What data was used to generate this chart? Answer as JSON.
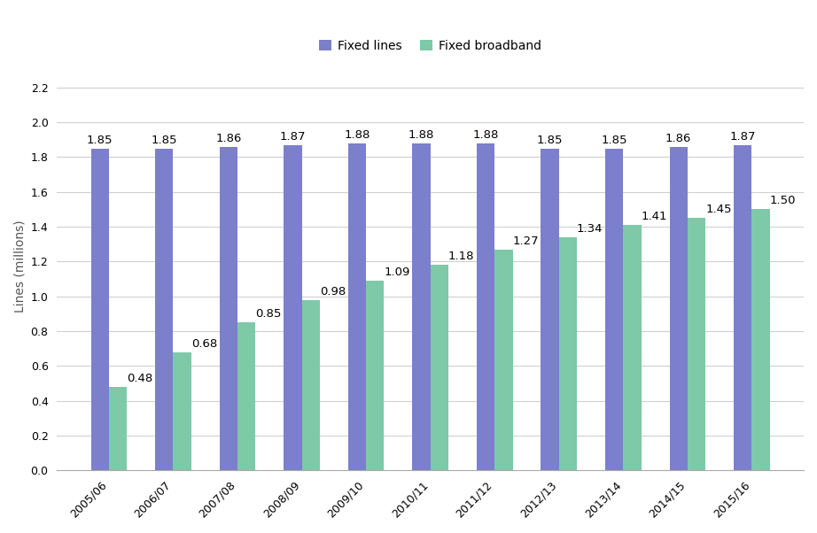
{
  "categories": [
    "2005/06",
    "2006/07",
    "2007/08",
    "2008/09",
    "2009/10",
    "2010/11",
    "2011/12",
    "2012/13",
    "2013/14",
    "2014/15",
    "2015/16"
  ],
  "fixed_lines": [
    1.85,
    1.85,
    1.86,
    1.87,
    1.88,
    1.88,
    1.88,
    1.85,
    1.85,
    1.86,
    1.87
  ],
  "fixed_broadband": [
    0.48,
    0.68,
    0.85,
    0.98,
    1.09,
    1.18,
    1.27,
    1.34,
    1.41,
    1.45,
    1.5
  ],
  "color_fixed_lines": "#7b7fcc",
  "color_fixed_broadband": "#7dc9a8",
  "ylabel": "Lines (millions)",
  "ylim": [
    0,
    2.35
  ],
  "yticks": [
    0.0,
    0.2,
    0.4,
    0.6,
    0.8,
    1.0,
    1.2,
    1.4,
    1.6,
    1.8,
    2.0,
    2.2
  ],
  "legend_labels": [
    "Fixed lines",
    "Fixed broadband"
  ],
  "bar_width": 0.28,
  "label_fontsize": 9.5,
  "axis_label_fontsize": 10,
  "tick_fontsize": 9,
  "legend_fontsize": 10,
  "background_color": "#ffffff",
  "grid_color": "#d0d0d0"
}
